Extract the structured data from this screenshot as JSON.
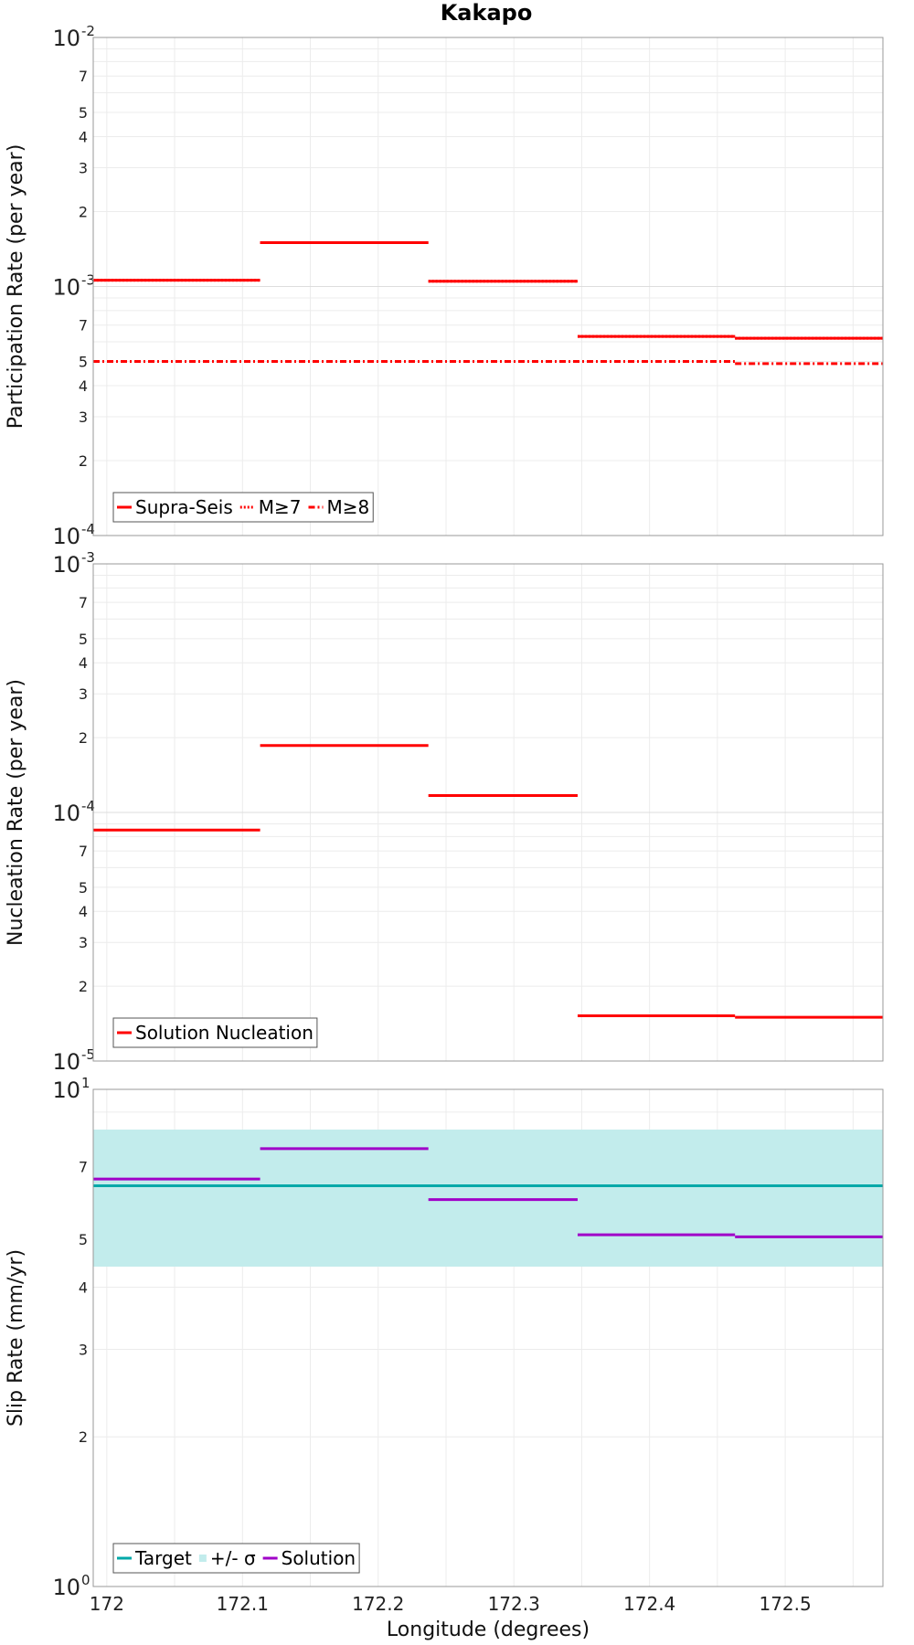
{
  "chart_data": {
    "type": "line",
    "title": "Kakapo",
    "xlabel": "Longitude (degrees)",
    "xlim": [
      171.99,
      172.572
    ],
    "xticks": [
      172,
      172.1,
      172.2,
      172.3,
      172.4,
      172.5
    ],
    "grid": true,
    "panels": [
      {
        "ylabel": "Participation Rate (per year)",
        "yscale": "log",
        "ylim": [
          0.0001,
          0.01
        ],
        "legend_position": "bottom-left",
        "series": [
          {
            "name": "Supra-Seis",
            "style": "solid",
            "color": "#ff0000",
            "segments": [
              {
                "x": [
                  171.99,
                  172.113
                ],
                "y": 0.00106
              },
              {
                "x": [
                  172.113,
                  172.237
                ],
                "y": 0.0015
              },
              {
                "x": [
                  172.237,
                  172.347
                ],
                "y": 0.00105
              },
              {
                "x": [
                  172.347,
                  172.463
                ],
                "y": 0.00063
              },
              {
                "x": [
                  172.463,
                  172.572
                ],
                "y": 0.00062
              }
            ]
          },
          {
            "name": "M≥7",
            "style": "dotted",
            "color": "#ff0000",
            "segments": [
              {
                "x": [
                  171.99,
                  172.113
                ],
                "y": 0.00106
              },
              {
                "x": [
                  172.113,
                  172.237
                ],
                "y": 0.0015
              },
              {
                "x": [
                  172.237,
                  172.347
                ],
                "y": 0.00105
              },
              {
                "x": [
                  172.347,
                  172.463
                ],
                "y": 0.00063
              },
              {
                "x": [
                  172.463,
                  172.572
                ],
                "y": 0.00062
              }
            ]
          },
          {
            "name": "M≥8",
            "style": "dashdot",
            "color": "#ff0000",
            "segments": [
              {
                "x": [
                  171.99,
                  172.463
                ],
                "y": 0.0005
              },
              {
                "x": [
                  172.463,
                  172.572
                ],
                "y": 0.00049
              }
            ]
          }
        ]
      },
      {
        "ylabel": "Nucleation Rate (per year)",
        "yscale": "log",
        "ylim": [
          1e-05,
          0.001
        ],
        "legend_position": "bottom-left",
        "series": [
          {
            "name": "Solution Nucleation",
            "style": "solid",
            "color": "#ff0000",
            "segments": [
              {
                "x": [
                  171.99,
                  172.113
                ],
                "y": 8.5e-05
              },
              {
                "x": [
                  172.113,
                  172.237
                ],
                "y": 0.000186
              },
              {
                "x": [
                  172.237,
                  172.347
                ],
                "y": 0.000117
              },
              {
                "x": [
                  172.347,
                  172.463
                ],
                "y": 1.52e-05
              },
              {
                "x": [
                  172.463,
                  172.572
                ],
                "y": 1.5e-05
              }
            ]
          }
        ]
      },
      {
        "ylabel": "Slip Rate (mm/yr)",
        "yscale": "log",
        "ylim": [
          1,
          10
        ],
        "legend_position": "bottom-left",
        "band": {
          "name": "+/- σ",
          "color": "#c2ecec",
          "y": [
            4.4,
            8.3
          ]
        },
        "series": [
          {
            "name": "Target",
            "style": "solid",
            "color": "#00a8a8",
            "segments": [
              {
                "x": [
                  171.99,
                  172.572
                ],
                "y": 6.4
              }
            ]
          },
          {
            "name": "Solution",
            "style": "solid",
            "color": "#a000c8",
            "segments": [
              {
                "x": [
                  171.99,
                  172.113
                ],
                "y": 6.6
              },
              {
                "x": [
                  172.113,
                  172.237
                ],
                "y": 7.6
              },
              {
                "x": [
                  172.237,
                  172.347
                ],
                "y": 6.0
              },
              {
                "x": [
                  172.347,
                  172.463
                ],
                "y": 5.1
              },
              {
                "x": [
                  172.463,
                  172.572
                ],
                "y": 5.05
              }
            ]
          }
        ]
      }
    ]
  }
}
